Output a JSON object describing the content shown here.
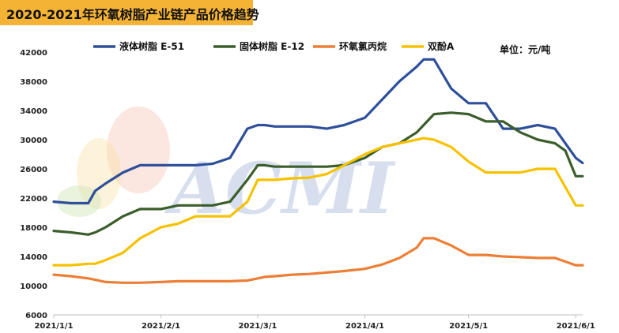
{
  "chart_data": {
    "type": "line",
    "title": "2020-2021年环氧树脂产业链产品价格趋势",
    "unit_label": "单位：元/吨",
    "watermark": "ACMI",
    "ylim": [
      6000,
      42000
    ],
    "yticks": [
      6000,
      10000,
      14000,
      18000,
      22000,
      26000,
      30000,
      34000,
      38000,
      42000
    ],
    "ytick_labels": [
      "6000",
      "10000",
      "14000",
      "18000",
      "22000",
      "26000",
      "30000",
      "34000",
      "38000",
      "42000"
    ],
    "x_dates": [
      "2021-01-01",
      "2021-01-06",
      "2021-01-11",
      "2021-01-13",
      "2021-01-16",
      "2021-01-21",
      "2021-01-26",
      "2021-02-01",
      "2021-02-06",
      "2021-02-11",
      "2021-02-16",
      "2021-02-21",
      "2021-02-26",
      "2021-03-01",
      "2021-03-03",
      "2021-03-06",
      "2021-03-11",
      "2021-03-16",
      "2021-03-21",
      "2021-03-26",
      "2021-04-01",
      "2021-04-06",
      "2021-04-11",
      "2021-04-16",
      "2021-04-18",
      "2021-04-21",
      "2021-04-26",
      "2021-05-01",
      "2021-05-06",
      "2021-05-11",
      "2021-05-16",
      "2021-05-21",
      "2021-05-26",
      "2021-05-29",
      "2021-06-01",
      "2021-06-03"
    ],
    "xticks": [
      "2021-01-01",
      "2021-02-01",
      "2021-03-01",
      "2021-04-01",
      "2021-05-01",
      "2021-06-01"
    ],
    "xtick_labels": [
      "2021/1/1",
      "2021/2/1",
      "2021/3/1",
      "2021/4/1",
      "2021/5/1",
      "2021/6/1"
    ],
    "series": [
      {
        "name": "液体树脂 E-51",
        "color": "#2e4f9a",
        "values": [
          21500,
          21300,
          21300,
          23000,
          24000,
          25500,
          26500,
          26500,
          26500,
          26500,
          26700,
          27500,
          31500,
          32000,
          32000,
          31800,
          31800,
          31800,
          31500,
          32000,
          33000,
          35500,
          38000,
          40000,
          41000,
          41000,
          37000,
          35000,
          35000,
          31500,
          31500,
          32000,
          31500,
          29500,
          27500,
          26800
        ]
      },
      {
        "name": "固体树脂 E-12",
        "color": "#3b5e2b",
        "values": [
          17500,
          17300,
          17000,
          17300,
          18000,
          19500,
          20500,
          20500,
          21000,
          21000,
          21000,
          21500,
          24500,
          26500,
          26500,
          26300,
          26300,
          26300,
          26300,
          26500,
          27500,
          29000,
          29500,
          31000,
          32000,
          33500,
          33700,
          33500,
          32500,
          32500,
          31000,
          30000,
          29500,
          28500,
          25000,
          25000
        ]
      },
      {
        "name": "环氧氯丙烷",
        "color": "#ec7f36",
        "values": [
          11500,
          11300,
          11000,
          10800,
          10500,
          10400,
          10400,
          10500,
          10600,
          10600,
          10600,
          10600,
          10700,
          11000,
          11200,
          11300,
          11500,
          11600,
          11800,
          12000,
          12300,
          12900,
          13800,
          15200,
          16500,
          16500,
          15500,
          14200,
          14200,
          14000,
          13900,
          13800,
          13800,
          13300,
          12800,
          12800
        ]
      },
      {
        "name": "双酚A",
        "color": "#f6c200",
        "values": [
          12800,
          12800,
          13000,
          13000,
          13500,
          14500,
          16500,
          18000,
          18500,
          19500,
          19500,
          19500,
          21500,
          24500,
          24500,
          24500,
          24700,
          24800,
          25300,
          26500,
          28000,
          29000,
          29500,
          30000,
          30200,
          30000,
          29000,
          27000,
          25500,
          25500,
          25500,
          26000,
          26000,
          23500,
          21000,
          21000
        ]
      }
    ]
  }
}
